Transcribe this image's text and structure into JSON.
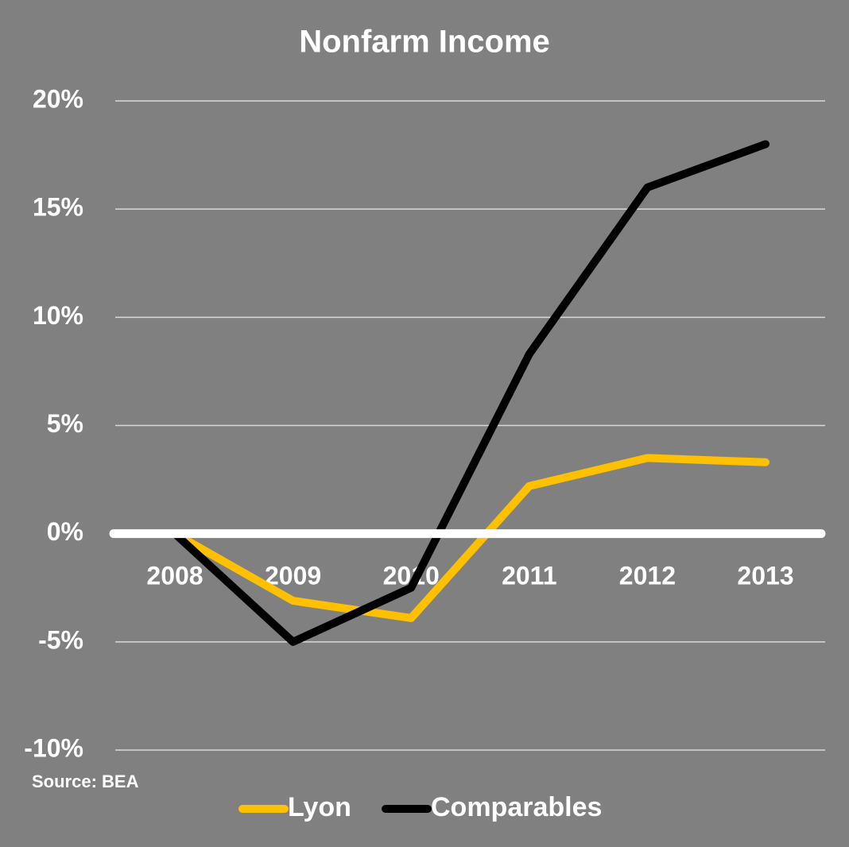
{
  "chart_data": {
    "type": "line",
    "title": "Nonfarm Income",
    "source": "Source: BEA",
    "categories": [
      "2008",
      "2009",
      "2010",
      "2011",
      "2012",
      "2013"
    ],
    "series": [
      {
        "name": "Lyon",
        "color": "#ffc000",
        "values": [
          0,
          -3.1,
          -3.9,
          2.2,
          3.5,
          3.3
        ]
      },
      {
        "name": "Comparables",
        "color": "#000000",
        "values": [
          0,
          -5.0,
          -2.5,
          8.3,
          16.0,
          18.0
        ]
      }
    ],
    "ylim": [
      -10,
      20
    ],
    "yticks": [
      {
        "value": -10,
        "label": "-10%"
      },
      {
        "value": -5,
        "label": "-5%"
      },
      {
        "value": 0,
        "label": "0%"
      },
      {
        "value": 5,
        "label": "5%"
      },
      {
        "value": 10,
        "label": "10%"
      },
      {
        "value": 15,
        "label": "15%"
      },
      {
        "value": 20,
        "label": "20%"
      }
    ],
    "grid": true,
    "legend": "bottom"
  }
}
